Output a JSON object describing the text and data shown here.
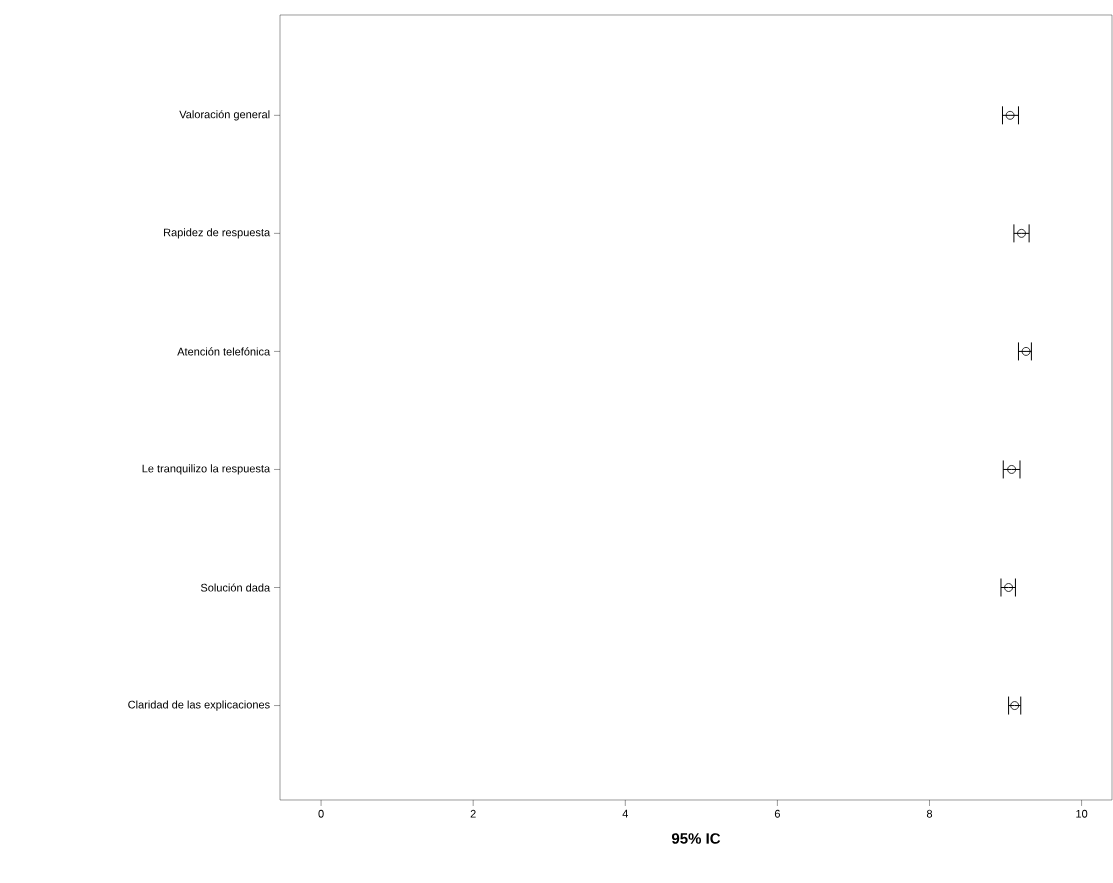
{
  "chart_data": {
    "type": "scatter",
    "orientation": "horizontal",
    "xlabel": "95% IC",
    "categories": [
      "Valoración general",
      "Rapidez de respuesta",
      "Atención telefónica",
      "Le tranquilizo la respuesta",
      "Solución dada",
      "Claridad de las explicaciones"
    ],
    "values": [
      9.06,
      9.21,
      9.27,
      9.08,
      9.04,
      9.12
    ],
    "errors": [
      [
        8.96,
        9.17
      ],
      [
        9.11,
        9.31
      ],
      [
        9.17,
        9.34
      ],
      [
        8.97,
        9.19
      ],
      [
        8.94,
        9.13
      ],
      [
        9.04,
        9.2
      ]
    ],
    "color": "#000000",
    "marker": "circle",
    "grid": false,
    "xlim": [
      -0.54,
      10.4
    ],
    "xticks": [
      0,
      2,
      4,
      6,
      8,
      10
    ]
  }
}
